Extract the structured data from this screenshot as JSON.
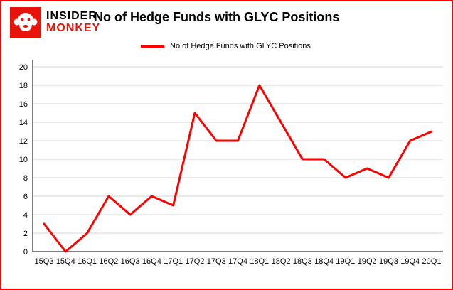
{
  "logo": {
    "line1": "INSIDER",
    "line2": "MONKEY",
    "icon_color": "#e8140c"
  },
  "header": {
    "title": "No of Hedge Funds with GLYC Positions"
  },
  "legend": {
    "label": "No of Hedge Funds with GLYC Positions",
    "color": "#ff0000"
  },
  "colors": {
    "line_red": "#ff0000",
    "border_red": "#ff0000",
    "gridline_gray": "#d6d6d6",
    "axis_black": "#000000"
  },
  "chart_data": {
    "type": "line",
    "title": "No of Hedge Funds with GLYC Positions",
    "categories": [
      "15Q3",
      "15Q4",
      "16Q1",
      "16Q2",
      "16Q3",
      "16Q4",
      "17Q1",
      "17Q2",
      "17Q3",
      "17Q4",
      "18Q1",
      "18Q2",
      "18Q3",
      "18Q4",
      "19Q1",
      "19Q2",
      "19Q3",
      "19Q4",
      "20Q1"
    ],
    "series": [
      {
        "name": "No of Hedge Funds with GLYC Positions",
        "color": "#ff0000",
        "values": [
          3,
          0,
          2,
          6,
          4,
          6,
          5,
          15,
          12,
          12,
          18,
          14,
          10,
          10,
          8,
          9,
          8,
          12,
          13
        ]
      }
    ],
    "xlabel": "",
    "ylabel": "",
    "ylim": [
      0,
      20
    ],
    "ytick_step": 2,
    "grid": true,
    "legend_position": "top-left"
  }
}
